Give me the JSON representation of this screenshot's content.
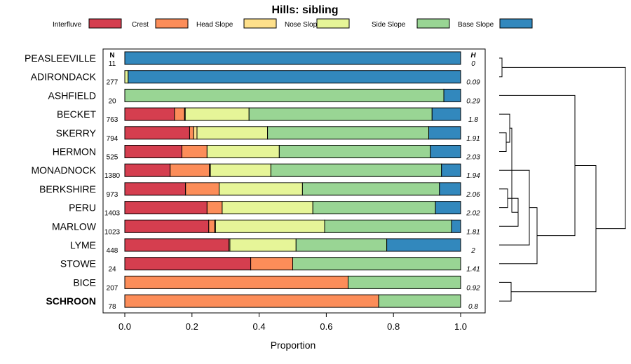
{
  "chart_data": {
    "type": "bar",
    "orientation": "horizontal",
    "stacked": true,
    "title": "Hills: sibling",
    "xlabel": "Proportion",
    "xlim": [
      0,
      1
    ],
    "xticks": [
      "0.0",
      "0.2",
      "0.4",
      "0.6",
      "0.8",
      "1.0"
    ],
    "xtick_values": [
      0,
      0.2,
      0.4,
      0.6,
      0.8,
      1.0
    ],
    "n_header": "N",
    "h_header": "H",
    "legend": [
      {
        "name": "Interfluve",
        "color": "#d53e4f"
      },
      {
        "name": "Crest",
        "color": "#fc8d59"
      },
      {
        "name": "Head Slope",
        "color": "#fee08b"
      },
      {
        "name": "Nose Slope",
        "color": "#e6f598"
      },
      {
        "name": "Side Slope",
        "color": "#99d594"
      },
      {
        "name": "Base Slope",
        "color": "#3288bd"
      }
    ],
    "categories": [
      "PEASLEEVILLE",
      "ADIRONDACK",
      "ASHFIELD",
      "BECKET",
      "SKERRY",
      "HERMON",
      "MONADNOCK",
      "BERKSHIRE",
      "PERU",
      "MARLOW",
      "LYME",
      "STOWE",
      "BICE",
      "SCHROON"
    ],
    "highlight": "SCHROON",
    "n": [
      "11",
      "277",
      "20",
      "763",
      "794",
      "525",
      "1380",
      "973",
      "1403",
      "1023",
      "448",
      "24",
      "207",
      "78"
    ],
    "h": [
      "0",
      "0.09",
      "0.29",
      "1.8",
      "1.91",
      "2.03",
      "1.94",
      "2.06",
      "2.02",
      "1.81",
      "2",
      "1.41",
      "0.92",
      "0.8"
    ],
    "series": [
      {
        "name": "Interfluve",
        "values": [
          0,
          0,
          0,
          0.148,
          0.193,
          0.17,
          0.135,
          0.181,
          0.245,
          0.25,
          0.31,
          0.375,
          0,
          0
        ]
      },
      {
        "name": "Crest",
        "values": [
          0,
          0,
          0,
          0.03,
          0.012,
          0.075,
          0.117,
          0.1,
          0.045,
          0.018,
          0,
          0.125,
          0.665,
          0.756
        ]
      },
      {
        "name": "Head Slope",
        "values": [
          0,
          0,
          0,
          0.002,
          0.01,
          0,
          0.003,
          0,
          0,
          0.002,
          0.003,
          0,
          0,
          0
        ]
      },
      {
        "name": "Nose Slope",
        "values": [
          0,
          0.01,
          0,
          0.19,
          0.21,
          0.215,
          0.18,
          0.248,
          0.27,
          0.325,
          0.197,
          0,
          0,
          0
        ]
      },
      {
        "name": "Side Slope",
        "values": [
          0,
          0,
          0.95,
          0.545,
          0.48,
          0.45,
          0.508,
          0.408,
          0.365,
          0.378,
          0.27,
          0.5,
          0.335,
          0.244
        ]
      },
      {
        "name": "Base Slope",
        "values": [
          1,
          0.99,
          0.05,
          0.085,
          0.095,
          0.09,
          0.057,
          0.063,
          0.075,
          0.027,
          0.22,
          0,
          0,
          0
        ]
      }
    ]
  }
}
